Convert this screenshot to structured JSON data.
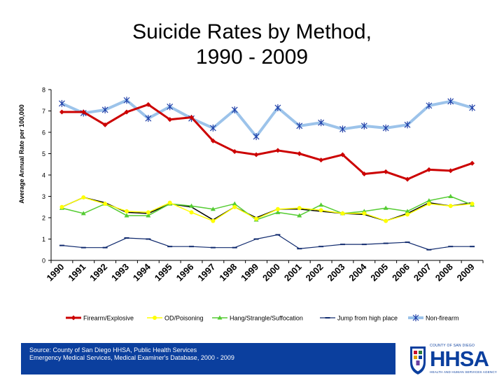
{
  "slide": {
    "title_line1": "Suicide Rates by Method,",
    "title_line2": "1990 - 2009"
  },
  "source": {
    "line1": "Source: County of San Diego HHSA, Public Health Services",
    "line2": "Emergency Medical Services, Medical Examiner's Database, 2000 - 2009"
  },
  "logo": {
    "top_text": "COUNTY OF SAN DIEGO",
    "word": "HHSA",
    "sub_text": "HEALTH AND HUMAN SERVICES AGENCY"
  },
  "chart_data": {
    "type": "line",
    "ylabel": "Average Annual Rate per 100,000",
    "xlabel": "",
    "ylim": [
      0,
      8
    ],
    "yticks": [
      "0",
      "1",
      "2",
      "3",
      "4",
      "5",
      "6",
      "7",
      "8"
    ],
    "categories": [
      "1990",
      "1991",
      "1992",
      "1993",
      "1994",
      "1995",
      "1996",
      "1997",
      "1998",
      "1999",
      "2000",
      "2001",
      "2002",
      "2003",
      "2004",
      "2005",
      "2006",
      "2007",
      "2008",
      "2009"
    ],
    "grid": false,
    "legend_position": "bottom",
    "series": [
      {
        "name": "Firearm/Explosive",
        "color": "#cc0000",
        "marker": "diamond",
        "values": [
          6.95,
          6.95,
          6.35,
          6.95,
          7.3,
          6.6,
          6.7,
          5.6,
          5.1,
          4.95,
          5.15,
          5.0,
          4.7,
          4.95,
          4.05,
          4.15,
          3.8,
          4.25,
          4.2,
          4.55
        ]
      },
      {
        "name": "OD/Poisoning",
        "color": "#ffff00",
        "marker": "circle",
        "values": [
          2.5,
          2.95,
          2.65,
          2.3,
          2.25,
          2.7,
          2.25,
          1.85,
          2.5,
          1.95,
          2.4,
          2.45,
          2.35,
          2.2,
          2.2,
          1.85,
          2.15,
          2.65,
          2.55,
          2.65
        ]
      },
      {
        "name": "Hang/Strangle/Suffocation",
        "color": "#55cc33",
        "marker": "triangle",
        "values": [
          2.45,
          2.2,
          2.65,
          2.1,
          2.1,
          2.65,
          2.55,
          2.4,
          2.65,
          1.9,
          2.25,
          2.1,
          2.6,
          2.2,
          2.3,
          2.45,
          2.3,
          2.8,
          3.0,
          2.6
        ]
      },
      {
        "name": "Jump from high place",
        "color": "#102a6e",
        "marker": "dash",
        "values": [
          0.7,
          0.6,
          0.6,
          1.05,
          1.0,
          0.65,
          0.65,
          0.6,
          0.6,
          1.0,
          1.2,
          0.55,
          0.65,
          0.75,
          0.75,
          0.8,
          0.85,
          0.5,
          0.65,
          0.65
        ]
      },
      {
        "name": "Non-firearm",
        "color": "#9cc3ea",
        "marker": "asterisk",
        "values": [
          7.35,
          6.9,
          7.05,
          7.5,
          6.65,
          7.2,
          6.65,
          6.2,
          7.05,
          5.8,
          7.15,
          6.3,
          6.45,
          6.15,
          6.3,
          6.2,
          6.35,
          7.25,
          7.45,
          7.15
        ]
      },
      {
        "name": "",
        "color": "#000000",
        "marker": "none",
        "values": [
          2.5,
          2.95,
          2.7,
          2.25,
          2.2,
          2.65,
          2.5,
          1.9,
          2.5,
          2.0,
          2.4,
          2.4,
          2.3,
          2.2,
          2.15,
          1.85,
          2.2,
          2.7,
          2.55,
          2.7
        ]
      }
    ]
  }
}
